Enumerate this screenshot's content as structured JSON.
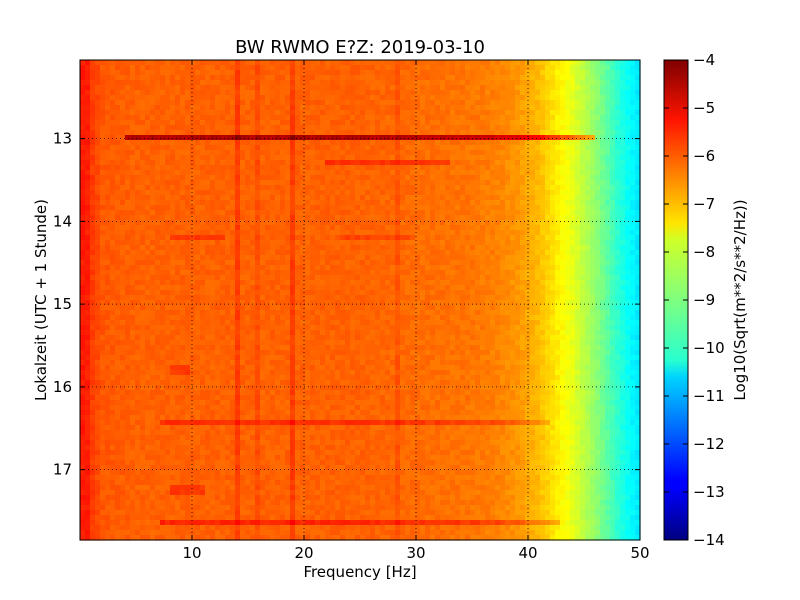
{
  "chart_data": {
    "type": "heatmap",
    "title": "BW RWMO E?Z: 2019-03-10",
    "xlabel": "Frequency [Hz]",
    "ylabel": "Lokalzeit (UTC + 1 Stunde)",
    "xlim": [
      0,
      50
    ],
    "ylim": [
      17.85,
      12.05
    ],
    "x_ticks": [
      10,
      20,
      30,
      40,
      50
    ],
    "y_ticks": [
      13,
      14,
      15,
      16,
      17
    ],
    "grid": true,
    "colormap": "jet",
    "colorbar": {
      "label": "Log10(Sqrt(m**2/s**2/Hz))",
      "range": [
        -14,
        -4
      ],
      "ticks": [
        -4,
        -5,
        -6,
        -7,
        -8,
        -9,
        -10,
        -11,
        -12,
        -13,
        -14
      ]
    },
    "baseline_profile": {
      "frequency_hz": [
        0,
        0.5,
        1,
        2,
        5,
        10,
        15,
        20,
        25,
        30,
        35,
        37,
        39,
        40,
        41,
        42,
        43,
        44,
        45,
        46,
        47,
        48,
        49,
        50
      ],
      "log_value": [
        -5.6,
        -5.4,
        -5.8,
        -6.1,
        -6.2,
        -6.2,
        -6.2,
        -6.2,
        -6.2,
        -6.3,
        -6.4,
        -6.5,
        -6.7,
        -6.9,
        -7.1,
        -7.4,
        -7.7,
        -8.0,
        -8.4,
        -8.8,
        -9.3,
        -9.8,
        -10.2,
        -10.5
      ]
    },
    "horizontal_bands": [
      {
        "hour": 12.97,
        "f_start": 4,
        "f_end": 46,
        "delta": 1.7
      },
      {
        "hour": 13.3,
        "f_start": 22,
        "f_end": 33,
        "delta": 0.5
      },
      {
        "hour": 14.2,
        "f_start": 8,
        "f_end": 13,
        "delta": 0.4
      },
      {
        "hour": 14.2,
        "f_start": 23,
        "f_end": 30,
        "delta": 0.3
      },
      {
        "hour": 15.8,
        "f_start": 8,
        "f_end": 10,
        "delta": 0.4
      },
      {
        "hour": 16.42,
        "f_start": 7,
        "f_end": 42,
        "delta": 0.5
      },
      {
        "hour": 17.2,
        "f_start": 8,
        "f_end": 11,
        "delta": 0.4
      },
      {
        "hour": 17.3,
        "f_start": 8,
        "f_end": 11,
        "delta": 0.4
      },
      {
        "hour": 17.66,
        "f_start": 7,
        "f_end": 43,
        "delta": 0.6
      }
    ],
    "vertical_lines": [
      {
        "frequency": 14.0,
        "delta": 0.35
      },
      {
        "frequency": 16.0,
        "delta": 0.2
      },
      {
        "frequency": 19.0,
        "delta": 0.35
      },
      {
        "frequency": 28.5,
        "delta": 0.2
      }
    ]
  }
}
